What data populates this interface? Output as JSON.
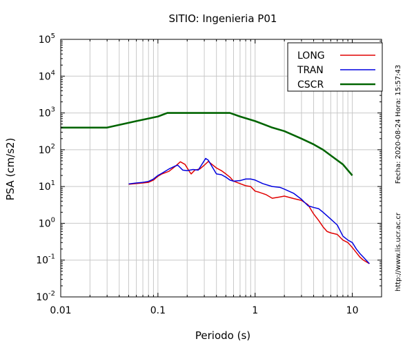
{
  "chart_data": {
    "type": "line",
    "title": "SITIO: Ingenieria P01",
    "xlabel": "Periodo (s)",
    "ylabel": "PSA (cm/s2)",
    "x_scale": "log",
    "y_scale": "log",
    "xlim": [
      0.01,
      20
    ],
    "ylim": [
      0.01,
      100000
    ],
    "grid": true,
    "legend_position": "top-right",
    "x_ticks": [
      {
        "value": 0.01,
        "label": "0.01"
      },
      {
        "value": 0.1,
        "label": "0.1"
      },
      {
        "value": 1,
        "label": "1"
      },
      {
        "value": 10,
        "label": "10"
      }
    ],
    "y_ticks": [
      {
        "value": 0.01,
        "base": "10",
        "exp": "-2"
      },
      {
        "value": 0.1,
        "base": "10",
        "exp": "-1"
      },
      {
        "value": 1,
        "base": "10",
        "exp": "0"
      },
      {
        "value": 10,
        "base": "10",
        "exp": "1"
      },
      {
        "value": 100,
        "base": "10",
        "exp": "2"
      },
      {
        "value": 1000,
        "base": "10",
        "exp": "3"
      },
      {
        "value": 10000,
        "base": "10",
        "exp": "4"
      },
      {
        "value": 100000,
        "base": "10",
        "exp": "5"
      }
    ],
    "series": [
      {
        "name": "LONG",
        "color": "#e00000",
        "points": [
          [
            0.05,
            11.5
          ],
          [
            0.06,
            12
          ],
          [
            0.07,
            12.5
          ],
          [
            0.08,
            13
          ],
          [
            0.09,
            15
          ],
          [
            0.1,
            19
          ],
          [
            0.11,
            22
          ],
          [
            0.13,
            26
          ],
          [
            0.15,
            35
          ],
          [
            0.17,
            47
          ],
          [
            0.19,
            40
          ],
          [
            0.21,
            26
          ],
          [
            0.22,
            22
          ],
          [
            0.24,
            28
          ],
          [
            0.27,
            30
          ],
          [
            0.3,
            38
          ],
          [
            0.33,
            48
          ],
          [
            0.36,
            40
          ],
          [
            0.4,
            32
          ],
          [
            0.45,
            27
          ],
          [
            0.5,
            22
          ],
          [
            0.55,
            18
          ],
          [
            0.6,
            14
          ],
          [
            0.7,
            12
          ],
          [
            0.8,
            10.5
          ],
          [
            0.9,
            10
          ],
          [
            1.0,
            7.5
          ],
          [
            1.1,
            7
          ],
          [
            1.3,
            6
          ],
          [
            1.5,
            4.8
          ],
          [
            1.8,
            5.2
          ],
          [
            2.0,
            5.5
          ],
          [
            2.5,
            4.7
          ],
          [
            3.0,
            4.2
          ],
          [
            3.5,
            3.2
          ],
          [
            4.0,
            1.8
          ],
          [
            4.5,
            1.2
          ],
          [
            5.0,
            0.8
          ],
          [
            5.5,
            0.6
          ],
          [
            6.0,
            0.55
          ],
          [
            7.0,
            0.5
          ],
          [
            8.0,
            0.35
          ],
          [
            9.0,
            0.3
          ],
          [
            10.0,
            0.22
          ],
          [
            11.0,
            0.16
          ],
          [
            12.0,
            0.12
          ],
          [
            13.0,
            0.1
          ],
          [
            15.0,
            0.08
          ]
        ]
      },
      {
        "name": "TRAN",
        "color": "#0000e0",
        "points": [
          [
            0.05,
            11.8
          ],
          [
            0.06,
            12.5
          ],
          [
            0.07,
            13
          ],
          [
            0.08,
            13.8
          ],
          [
            0.09,
            16
          ],
          [
            0.1,
            20
          ],
          [
            0.11,
            23
          ],
          [
            0.13,
            30
          ],
          [
            0.15,
            36
          ],
          [
            0.16,
            38
          ],
          [
            0.18,
            28
          ],
          [
            0.2,
            27
          ],
          [
            0.23,
            29
          ],
          [
            0.26,
            28
          ],
          [
            0.28,
            38
          ],
          [
            0.31,
            58
          ],
          [
            0.33,
            52
          ],
          [
            0.36,
            35
          ],
          [
            0.4,
            22
          ],
          [
            0.45,
            21
          ],
          [
            0.5,
            18
          ],
          [
            0.55,
            15
          ],
          [
            0.6,
            14
          ],
          [
            0.7,
            14.5
          ],
          [
            0.8,
            16
          ],
          [
            0.9,
            16
          ],
          [
            1.0,
            15
          ],
          [
            1.2,
            12
          ],
          [
            1.5,
            10
          ],
          [
            1.8,
            9.5
          ],
          [
            2.0,
            8.5
          ],
          [
            2.5,
            6.5
          ],
          [
            3.0,
            4.5
          ],
          [
            3.5,
            3
          ],
          [
            4.0,
            2.7
          ],
          [
            4.5,
            2.5
          ],
          [
            5.0,
            2
          ],
          [
            5.5,
            1.6
          ],
          [
            6.0,
            1.3
          ],
          [
            7.0,
            0.9
          ],
          [
            8.0,
            0.45
          ],
          [
            9.0,
            0.35
          ],
          [
            10.0,
            0.3
          ],
          [
            11.0,
            0.2
          ],
          [
            12.0,
            0.15
          ],
          [
            13.0,
            0.12
          ],
          [
            15.0,
            0.08
          ]
        ]
      },
      {
        "name": "CSCR",
        "color": "#006400",
        "points": [
          [
            0.01,
            400
          ],
          [
            0.03,
            400
          ],
          [
            0.06,
            600
          ],
          [
            0.1,
            800
          ],
          [
            0.125,
            1000
          ],
          [
            0.55,
            1000
          ],
          [
            0.7,
            800
          ],
          [
            1.0,
            600
          ],
          [
            1.5,
            400
          ],
          [
            2.0,
            320
          ],
          [
            3.0,
            200
          ],
          [
            4.0,
            140
          ],
          [
            5.0,
            100
          ],
          [
            6.0,
            70
          ],
          [
            8.0,
            40
          ],
          [
            10.0,
            20
          ]
        ]
      }
    ]
  },
  "side_text": {
    "timestamp": "Fecha: 2020-08-24 Hora: 15:57:43",
    "url": "http://www.lis.ucr.ac.cr"
  }
}
